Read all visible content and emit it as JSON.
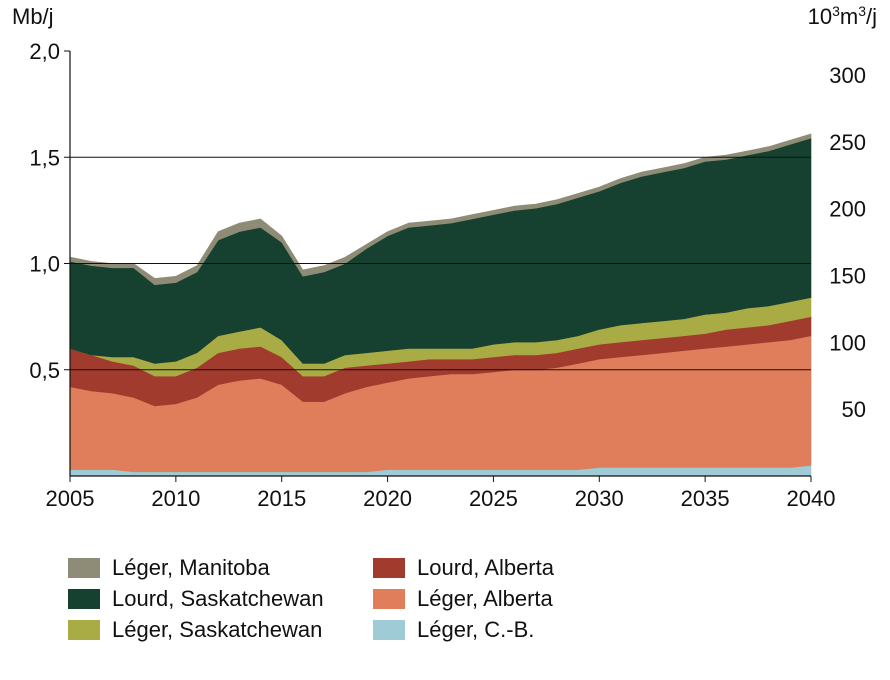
{
  "chart_data": {
    "type": "area",
    "stacked": true,
    "y_left_label": "Mb/j",
    "y_right_label_base": "10",
    "y_right_label_sup1": "3",
    "y_right_label_mid": "m",
    "y_right_label_sup2": "3",
    "y_right_label_end": "/j",
    "xlim": [
      2005,
      2040
    ],
    "ylim": [
      0,
      2.0
    ],
    "x_ticks": [
      "2005",
      "2010",
      "2015",
      "2020",
      "2025",
      "2030",
      "2035",
      "2040"
    ],
    "y_left_ticks": [
      {
        "value": 0.5,
        "label": "0,5"
      },
      {
        "value": 1.0,
        "label": "1,0"
      },
      {
        "value": 1.5,
        "label": "1,5"
      },
      {
        "value": 2.0,
        "label": "2,0"
      }
    ],
    "y_right_ticks": [
      {
        "value": 50,
        "label": "50"
      },
      {
        "value": 100,
        "label": "100"
      },
      {
        "value": 150,
        "label": "150"
      },
      {
        "value": 200,
        "label": "200"
      },
      {
        "value": 250,
        "label": "250"
      },
      {
        "value": 300,
        "label": "300"
      }
    ],
    "y_right_max": 318,
    "gridlines": [
      0.5,
      1.0,
      1.5
    ],
    "x": [
      2005,
      2006,
      2007,
      2008,
      2009,
      2010,
      2011,
      2012,
      2013,
      2014,
      2015,
      2016,
      2017,
      2018,
      2019,
      2020,
      2021,
      2022,
      2023,
      2024,
      2025,
      2026,
      2027,
      2028,
      2029,
      2030,
      2031,
      2032,
      2033,
      2034,
      2035,
      2036,
      2037,
      2038,
      2039,
      2040
    ],
    "series": [
      {
        "name": "Léger, C.-B.",
        "color": "#9ecbd6",
        "values": [
          0.03,
          0.03,
          0.03,
          0.02,
          0.02,
          0.02,
          0.02,
          0.02,
          0.02,
          0.02,
          0.02,
          0.02,
          0.02,
          0.02,
          0.02,
          0.03,
          0.03,
          0.03,
          0.03,
          0.03,
          0.03,
          0.03,
          0.03,
          0.03,
          0.03,
          0.04,
          0.04,
          0.04,
          0.04,
          0.04,
          0.04,
          0.04,
          0.04,
          0.04,
          0.04,
          0.05
        ]
      },
      {
        "name": "Léger, Alberta",
        "color": "#e07d5b",
        "values": [
          0.39,
          0.37,
          0.36,
          0.35,
          0.31,
          0.32,
          0.35,
          0.41,
          0.43,
          0.44,
          0.41,
          0.33,
          0.33,
          0.37,
          0.4,
          0.41,
          0.43,
          0.44,
          0.45,
          0.45,
          0.46,
          0.47,
          0.47,
          0.48,
          0.5,
          0.51,
          0.52,
          0.53,
          0.54,
          0.55,
          0.56,
          0.57,
          0.58,
          0.59,
          0.6,
          0.61
        ]
      },
      {
        "name": "Lourd, Alberta",
        "color": "#a03b2d",
        "values": [
          0.18,
          0.17,
          0.15,
          0.15,
          0.14,
          0.13,
          0.14,
          0.15,
          0.15,
          0.15,
          0.13,
          0.12,
          0.12,
          0.12,
          0.1,
          0.09,
          0.08,
          0.08,
          0.07,
          0.07,
          0.07,
          0.07,
          0.07,
          0.07,
          0.07,
          0.07,
          0.07,
          0.07,
          0.07,
          0.07,
          0.07,
          0.08,
          0.08,
          0.08,
          0.09,
          0.09
        ]
      },
      {
        "name": "Léger, Saskatchewan",
        "color": "#a9ab45",
        "values": [
          0.0,
          0.0,
          0.02,
          0.04,
          0.06,
          0.07,
          0.07,
          0.08,
          0.08,
          0.09,
          0.08,
          0.06,
          0.06,
          0.06,
          0.06,
          0.06,
          0.06,
          0.05,
          0.05,
          0.05,
          0.06,
          0.06,
          0.06,
          0.06,
          0.06,
          0.07,
          0.08,
          0.08,
          0.08,
          0.08,
          0.09,
          0.08,
          0.09,
          0.09,
          0.09,
          0.09
        ]
      },
      {
        "name": "Lourd, Saskatchewan",
        "color": "#16402f",
        "values": [
          0.41,
          0.42,
          0.42,
          0.42,
          0.37,
          0.37,
          0.38,
          0.45,
          0.47,
          0.47,
          0.46,
          0.41,
          0.43,
          0.43,
          0.49,
          0.54,
          0.57,
          0.58,
          0.59,
          0.61,
          0.61,
          0.62,
          0.63,
          0.64,
          0.65,
          0.65,
          0.67,
          0.69,
          0.7,
          0.71,
          0.72,
          0.72,
          0.72,
          0.73,
          0.74,
          0.75
        ]
      },
      {
        "name": "Léger, Manitoba",
        "color": "#8e8b76",
        "values": [
          0.02,
          0.02,
          0.02,
          0.02,
          0.03,
          0.03,
          0.03,
          0.04,
          0.04,
          0.04,
          0.03,
          0.03,
          0.03,
          0.03,
          0.02,
          0.02,
          0.02,
          0.02,
          0.02,
          0.02,
          0.02,
          0.02,
          0.02,
          0.02,
          0.02,
          0.02,
          0.02,
          0.02,
          0.02,
          0.02,
          0.02,
          0.02,
          0.02,
          0.02,
          0.02,
          0.02
        ]
      }
    ],
    "legend": [
      {
        "label": "Léger, Manitoba",
        "color": "#8e8b76"
      },
      {
        "label": "Lourd, Saskatchewan",
        "color": "#16402f"
      },
      {
        "label": "Léger, Saskatchewan",
        "color": "#a9ab45"
      },
      {
        "label": "Lourd, Alberta",
        "color": "#a03b2d"
      },
      {
        "label": "Léger, Alberta",
        "color": "#e07d5b"
      },
      {
        "label": "Léger, C.-B.",
        "color": "#9ecbd6"
      }
    ],
    "legend_placement": "bottom"
  }
}
